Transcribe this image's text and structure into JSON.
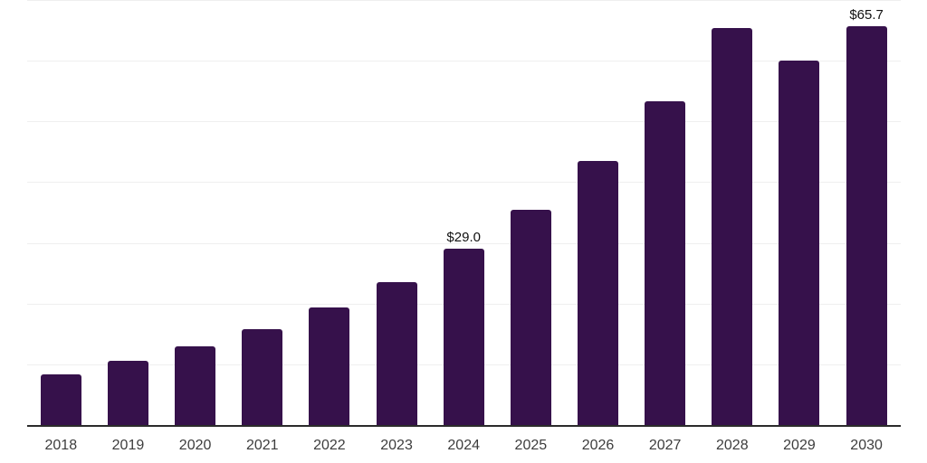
{
  "chart_data": {
    "type": "bar",
    "title": "",
    "xlabel": "",
    "ylabel": "",
    "categories": [
      "2018",
      "2019",
      "2020",
      "2021",
      "2022",
      "2023",
      "2024",
      "2025",
      "2026",
      "2027",
      "2028",
      "2029",
      "2030"
    ],
    "values": [
      8.3,
      10.6,
      13.0,
      15.8,
      19.3,
      23.5,
      29.0,
      35.4,
      43.5,
      53.3,
      65.4,
      60.0,
      65.7
    ],
    "data_labels": [
      {
        "index": 6,
        "text": "$29.0"
      },
      {
        "index": 12,
        "text": "$65.7"
      }
    ],
    "value_prefix": "$",
    "ylim": [
      0,
      70
    ],
    "grid": true,
    "grid_step": 10,
    "legend": "none",
    "y_tick_labels_visible": false,
    "colors": {
      "bar": "#36114B",
      "gridline": "#EFEFEF",
      "axis_line": "#2B2B2B",
      "tick_label": "#3D3D3D",
      "data_label": "#111111",
      "background": "#FFFFFF"
    }
  }
}
